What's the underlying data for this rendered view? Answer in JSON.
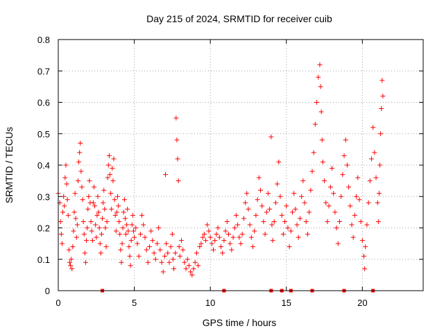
{
  "chart_data": {
    "type": "scatter",
    "title": "Day 215 of 2024, SRMTID for receiver cuib",
    "xlabel": "GPS time / hours",
    "ylabel": "SRMTID / TECUs",
    "xlim": [
      0,
      24
    ],
    "ylim": [
      0,
      0.8
    ],
    "xticks": [
      0,
      5,
      10,
      15,
      20
    ],
    "yticks": [
      0,
      0.1,
      0.2,
      0.3,
      0.4,
      0.5,
      0.6,
      0.7,
      0.8
    ],
    "xtick_labels": [
      "0",
      "5",
      "10",
      "15",
      "20"
    ],
    "ytick_labels": [
      "0",
      "0.1",
      "0.2",
      "0.3",
      "0.4",
      "0.5",
      "0.6",
      "0.7",
      "0.8"
    ],
    "grid": true,
    "marker": "plus",
    "color": "#ff0000",
    "series": [
      {
        "name": "SRMTID",
        "points": [
          [
            0.0,
            0.31
          ],
          [
            0.1,
            0.28
          ],
          [
            0.15,
            0.22
          ],
          [
            0.2,
            0.18
          ],
          [
            0.25,
            0.15
          ],
          [
            0.3,
            0.25
          ],
          [
            0.35,
            0.3
          ],
          [
            0.4,
            0.27
          ],
          [
            0.45,
            0.36
          ],
          [
            0.5,
            0.4
          ],
          [
            0.55,
            0.34
          ],
          [
            0.6,
            0.29
          ],
          [
            0.65,
            0.24
          ],
          [
            0.7,
            0.13
          ],
          [
            0.75,
            0.09
          ],
          [
            0.8,
            0.08
          ],
          [
            0.85,
            0.1
          ],
          [
            0.9,
            0.07
          ],
          [
            0.95,
            0.14
          ],
          [
            1.0,
            0.19
          ],
          [
            1.05,
            0.25
          ],
          [
            1.1,
            0.31
          ],
          [
            1.15,
            0.23
          ],
          [
            1.2,
            0.17
          ],
          [
            1.25,
            0.21
          ],
          [
            1.3,
            0.35
          ],
          [
            1.35,
            0.41
          ],
          [
            1.4,
            0.44
          ],
          [
            1.45,
            0.47
          ],
          [
            1.5,
            0.38
          ],
          [
            1.55,
            0.33
          ],
          [
            1.6,
            0.29
          ],
          [
            1.65,
            0.22
          ],
          [
            1.7,
            0.18
          ],
          [
            1.75,
            0.12
          ],
          [
            1.8,
            0.09
          ],
          [
            1.85,
            0.16
          ],
          [
            1.9,
            0.2
          ],
          [
            1.95,
            0.26
          ],
          [
            2.0,
            0.3
          ],
          [
            2.05,
            0.35
          ],
          [
            2.1,
            0.28
          ],
          [
            2.15,
            0.22
          ],
          [
            2.2,
            0.19
          ],
          [
            2.25,
            0.16
          ],
          [
            2.3,
            0.28
          ],
          [
            2.35,
            0.33
          ],
          [
            2.4,
            0.27
          ],
          [
            2.45,
            0.21
          ],
          [
            2.5,
            0.17
          ],
          [
            2.55,
            0.24
          ],
          [
            2.6,
            0.3
          ],
          [
            2.65,
            0.25
          ],
          [
            2.7,
            0.2
          ],
          [
            2.75,
            0.15
          ],
          [
            2.8,
            0.12
          ],
          [
            2.85,
            0.18
          ],
          [
            2.9,
            0.23
          ],
          [
            2.95,
            0.28
          ],
          [
            3.0,
            0.32
          ],
          [
            3.05,
            0.26
          ],
          [
            3.1,
            0.2
          ],
          [
            3.15,
            0.14
          ],
          [
            3.2,
            0.22
          ],
          [
            3.25,
            0.36
          ],
          [
            3.3,
            0.4
          ],
          [
            3.35,
            0.43
          ],
          [
            3.4,
            0.37
          ],
          [
            3.45,
            0.31
          ],
          [
            3.5,
            0.26
          ],
          [
            3.55,
            0.39
          ],
          [
            3.6,
            0.35
          ],
          [
            3.65,
            0.42
          ],
          [
            3.7,
            0.29
          ],
          [
            3.75,
            0.24
          ],
          [
            3.8,
            0.19
          ],
          [
            3.85,
            0.25
          ],
          [
            3.9,
            0.3
          ],
          [
            3.95,
            0.27
          ],
          [
            4.0,
            0.22
          ],
          [
            4.05,
            0.18
          ],
          [
            4.1,
            0.13
          ],
          [
            4.15,
            0.09
          ],
          [
            4.2,
            0.15
          ],
          [
            4.25,
            0.2
          ],
          [
            4.3,
            0.25
          ],
          [
            4.35,
            0.29
          ],
          [
            4.4,
            0.23
          ],
          [
            4.45,
            0.18
          ],
          [
            4.5,
            0.21
          ],
          [
            4.55,
            0.26
          ],
          [
            4.6,
            0.19
          ],
          [
            4.65,
            0.14
          ],
          [
            4.7,
            0.11
          ],
          [
            4.75,
            0.08
          ],
          [
            4.8,
            0.16
          ],
          [
            4.85,
            0.21
          ],
          [
            4.9,
            0.24
          ],
          [
            4.95,
            0.19
          ],
          [
            5.0,
            0.17
          ],
          [
            5.1,
            0.2
          ],
          [
            5.2,
            0.15
          ],
          [
            5.3,
            0.11
          ],
          [
            5.4,
            0.18
          ],
          [
            5.5,
            0.24
          ],
          [
            5.6,
            0.21
          ],
          [
            5.7,
            0.17
          ],
          [
            5.8,
            0.13
          ],
          [
            5.9,
            0.09
          ],
          [
            6.0,
            0.14
          ],
          [
            6.1,
            0.19
          ],
          [
            6.2,
            0.16
          ],
          [
            6.3,
            0.12
          ],
          [
            6.4,
            0.1
          ],
          [
            6.5,
            0.15
          ],
          [
            6.6,
            0.2
          ],
          [
            6.7,
            0.13
          ],
          [
            6.8,
            0.09
          ],
          [
            6.9,
            0.06
          ],
          [
            7.0,
            0.11
          ],
          [
            7.05,
            0.37
          ],
          [
            7.1,
            0.15
          ],
          [
            7.2,
            0.12
          ],
          [
            7.3,
            0.09
          ],
          [
            7.4,
            0.14
          ],
          [
            7.5,
            0.18
          ],
          [
            7.55,
            0.1
          ],
          [
            7.6,
            0.07
          ],
          [
            7.7,
            0.12
          ],
          [
            7.75,
            0.55
          ],
          [
            7.8,
            0.48
          ],
          [
            7.85,
            0.42
          ],
          [
            7.9,
            0.35
          ],
          [
            7.95,
            0.14
          ],
          [
            8.0,
            0.11
          ],
          [
            8.1,
            0.16
          ],
          [
            8.2,
            0.13
          ],
          [
            8.3,
            0.09
          ],
          [
            8.4,
            0.07
          ],
          [
            8.5,
            0.1
          ],
          [
            8.6,
            0.08
          ],
          [
            8.7,
            0.06
          ],
          [
            8.8,
            0.05
          ],
          [
            8.9,
            0.07
          ],
          [
            9.0,
            0.09
          ],
          [
            9.1,
            0.12
          ],
          [
            9.2,
            0.08
          ],
          [
            9.3,
            0.14
          ],
          [
            9.4,
            0.15
          ],
          [
            9.5,
            0.17
          ],
          [
            9.6,
            0.18
          ],
          [
            9.7,
            0.16
          ],
          [
            9.8,
            0.21
          ],
          [
            9.9,
            0.19
          ],
          [
            10.0,
            0.17
          ],
          [
            10.1,
            0.15
          ],
          [
            10.2,
            0.13
          ],
          [
            10.3,
            0.16
          ],
          [
            10.4,
            0.18
          ],
          [
            10.5,
            0.2
          ],
          [
            10.6,
            0.17
          ],
          [
            10.7,
            0.14
          ],
          [
            10.8,
            0.12
          ],
          [
            10.9,
            0.16
          ],
          [
            11.0,
            0.19
          ],
          [
            11.1,
            0.22
          ],
          [
            11.2,
            0.18
          ],
          [
            11.3,
            0.15
          ],
          [
            11.4,
            0.13
          ],
          [
            11.5,
            0.17
          ],
          [
            11.6,
            0.2
          ],
          [
            11.7,
            0.24
          ],
          [
            11.8,
            0.21
          ],
          [
            11.9,
            0.17
          ],
          [
            12.0,
            0.15
          ],
          [
            12.1,
            0.18
          ],
          [
            12.2,
            0.23
          ],
          [
            12.3,
            0.28
          ],
          [
            12.4,
            0.31
          ],
          [
            12.5,
            0.26
          ],
          [
            12.6,
            0.21
          ],
          [
            12.7,
            0.17
          ],
          [
            12.8,
            0.14
          ],
          [
            12.9,
            0.19
          ],
          [
            13.0,
            0.24
          ],
          [
            13.1,
            0.29
          ],
          [
            13.2,
            0.36
          ],
          [
            13.3,
            0.32
          ],
          [
            13.4,
            0.27
          ],
          [
            13.5,
            0.22
          ],
          [
            13.6,
            0.18
          ],
          [
            13.7,
            0.25
          ],
          [
            13.8,
            0.31
          ],
          [
            13.9,
            0.26
          ],
          [
            14.0,
            0.49
          ],
          [
            14.05,
            0.21
          ],
          [
            14.1,
            0.16
          ],
          [
            14.2,
            0.22
          ],
          [
            14.3,
            0.28
          ],
          [
            14.4,
            0.34
          ],
          [
            14.5,
            0.41
          ],
          [
            14.6,
            0.3
          ],
          [
            14.7,
            0.24
          ],
          [
            14.8,
            0.18
          ],
          [
            14.9,
            0.22
          ],
          [
            15.0,
            0.27
          ],
          [
            15.1,
            0.2
          ],
          [
            15.2,
            0.14
          ],
          [
            15.3,
            0.19
          ],
          [
            15.4,
            0.25
          ],
          [
            15.5,
            0.31
          ],
          [
            15.6,
            0.26
          ],
          [
            15.7,
            0.21
          ],
          [
            15.8,
            0.17
          ],
          [
            15.9,
            0.23
          ],
          [
            16.0,
            0.3
          ],
          [
            16.1,
            0.35
          ],
          [
            16.2,
            0.28
          ],
          [
            16.3,
            0.22
          ],
          [
            16.4,
            0.18
          ],
          [
            16.5,
            0.25
          ],
          [
            16.6,
            0.32
          ],
          [
            16.7,
            0.38
          ],
          [
            16.8,
            0.44
          ],
          [
            16.9,
            0.53
          ],
          [
            17.0,
            0.6
          ],
          [
            17.1,
            0.68
          ],
          [
            17.2,
            0.72
          ],
          [
            17.25,
            0.65
          ],
          [
            17.3,
            0.57
          ],
          [
            17.35,
            0.48
          ],
          [
            17.4,
            0.41
          ],
          [
            17.5,
            0.35
          ],
          [
            17.6,
            0.28
          ],
          [
            17.7,
            0.22
          ],
          [
            17.8,
            0.27
          ],
          [
            17.9,
            0.33
          ],
          [
            18.0,
            0.39
          ],
          [
            18.1,
            0.31
          ],
          [
            18.2,
            0.25
          ],
          [
            18.3,
            0.2
          ],
          [
            18.4,
            0.15
          ],
          [
            18.5,
            0.22
          ],
          [
            18.6,
            0.3
          ],
          [
            18.7,
            0.37
          ],
          [
            18.8,
            0.43
          ],
          [
            18.9,
            0.48
          ],
          [
            19.0,
            0.4
          ],
          [
            19.1,
            0.33
          ],
          [
            19.2,
            0.27
          ],
          [
            19.3,
            0.21
          ],
          [
            19.4,
            0.17
          ],
          [
            19.5,
            0.24
          ],
          [
            19.6,
            0.3
          ],
          [
            19.7,
            0.36
          ],
          [
            19.8,
            0.29
          ],
          [
            19.9,
            0.22
          ],
          [
            20.0,
            0.16
          ],
          [
            20.1,
            0.11
          ],
          [
            20.15,
            0.07
          ],
          [
            20.2,
            0.14
          ],
          [
            20.3,
            0.21
          ],
          [
            20.4,
            0.28
          ],
          [
            20.5,
            0.35
          ],
          [
            20.6,
            0.42
          ],
          [
            20.7,
            0.52
          ],
          [
            20.8,
            0.44
          ],
          [
            20.9,
            0.36
          ],
          [
            21.0,
            0.28
          ],
          [
            21.05,
            0.22
          ],
          [
            21.1,
            0.31
          ],
          [
            21.15,
            0.4
          ],
          [
            21.2,
            0.5
          ],
          [
            21.25,
            0.58
          ],
          [
            21.3,
            0.67
          ],
          [
            21.35,
            0.62
          ]
        ]
      }
    ],
    "baseline_markers_x": [
      2.9,
      10.9,
      14.0,
      14.7,
      15.3,
      16.7,
      18.8,
      20.7
    ]
  }
}
